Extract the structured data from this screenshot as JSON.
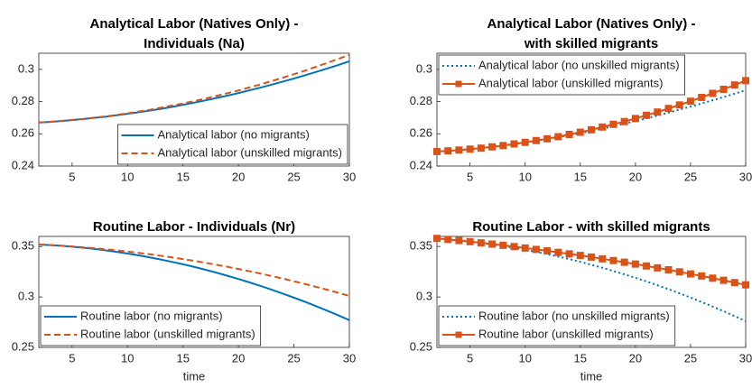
{
  "chart_data": [
    {
      "type": "line",
      "title": [
        "Analytical Labor (Natives Only) -",
        "Individuals (Na)"
      ],
      "x": [
        2,
        3,
        4,
        5,
        6,
        7,
        8,
        9,
        10,
        11,
        12,
        13,
        14,
        15,
        16,
        17,
        18,
        19,
        20,
        21,
        22,
        23,
        24,
        25,
        26,
        27,
        28,
        29,
        30
      ],
      "xlim": [
        2,
        30
      ],
      "xticks": [
        5,
        10,
        15,
        20,
        25,
        30
      ],
      "ylim": [
        0.24,
        0.31
      ],
      "yticks": [
        0.24,
        0.26,
        0.28,
        0.3
      ],
      "legend": "lower right",
      "series": [
        {
          "name": "Analytical labor (no migrants)",
          "color": "#0072BD",
          "style": "solid",
          "values": [
            0.267,
            0.2674,
            0.2679,
            0.2685,
            0.2692,
            0.2699,
            0.2706,
            0.2715,
            0.2724,
            0.2734,
            0.2744,
            0.2755,
            0.2767,
            0.278,
            0.2793,
            0.2807,
            0.2822,
            0.2837,
            0.2853,
            0.287,
            0.2887,
            0.2905,
            0.2924,
            0.2943,
            0.2963,
            0.2984,
            0.3005,
            0.3027,
            0.305
          ]
        },
        {
          "name": "Analytical labor (unskilled migrants)",
          "color": "#D95319",
          "style": "dashed",
          "values": [
            0.267,
            0.2674,
            0.268,
            0.2686,
            0.2692,
            0.27,
            0.2708,
            0.2717,
            0.2727,
            0.2738,
            0.2749,
            0.2762,
            0.2775,
            0.2788,
            0.2803,
            0.2819,
            0.2835,
            0.2852,
            0.2869,
            0.2888,
            0.2907,
            0.2927,
            0.2948,
            0.297,
            0.2992,
            0.3016,
            0.304,
            0.3065,
            0.309
          ]
        }
      ]
    },
    {
      "type": "line",
      "title": [
        "Analytical Labor (Natives Only) -",
        "with skilled migrants"
      ],
      "x": [
        2,
        3,
        4,
        5,
        6,
        7,
        8,
        9,
        10,
        11,
        12,
        13,
        14,
        15,
        16,
        17,
        18,
        19,
        20,
        21,
        22,
        23,
        24,
        25,
        26,
        27,
        28,
        29,
        30
      ],
      "xlim": [
        2,
        30
      ],
      "xticks": [
        5,
        10,
        15,
        20,
        25,
        30
      ],
      "ylim": [
        0.24,
        0.31
      ],
      "yticks": [
        0.24,
        0.26,
        0.28,
        0.3
      ],
      "legend": "upper left",
      "series": [
        {
          "name": "Analytical labor (no unskilled migrants)",
          "color": "#0072BD",
          "style": "dotted",
          "values": [
            0.249,
            0.2494,
            0.2499,
            0.2505,
            0.2511,
            0.2519,
            0.2527,
            0.2536,
            0.2545,
            0.2556,
            0.2567,
            0.2579,
            0.2591,
            0.2604,
            0.2618,
            0.2632,
            0.2647,
            0.2663,
            0.2679,
            0.2696,
            0.2713,
            0.2731,
            0.275,
            0.2769,
            0.2788,
            0.2808,
            0.2828,
            0.2849,
            0.287
          ]
        },
        {
          "name": "Analytical labor (unskilled migrants)",
          "color": "#D95319",
          "style": "solid",
          "marker": "square",
          "values": [
            0.249,
            0.2494,
            0.2499,
            0.2505,
            0.2511,
            0.2519,
            0.2527,
            0.2537,
            0.2547,
            0.2558,
            0.2569,
            0.2582,
            0.2596,
            0.261,
            0.2625,
            0.2642,
            0.2659,
            0.2676,
            0.2695,
            0.2715,
            0.2735,
            0.2757,
            0.2779,
            0.2802,
            0.2826,
            0.2851,
            0.2876,
            0.2903,
            0.293
          ]
        }
      ]
    },
    {
      "type": "line",
      "title": [
        "Routine Labor - Individuals (Nr)"
      ],
      "xlabel": "time",
      "x": [
        2,
        3,
        4,
        5,
        6,
        7,
        8,
        9,
        10,
        11,
        12,
        13,
        14,
        15,
        16,
        17,
        18,
        19,
        20,
        21,
        22,
        23,
        24,
        25,
        26,
        27,
        28,
        29,
        30
      ],
      "xlim": [
        2,
        30
      ],
      "xticks": [
        5,
        10,
        15,
        20,
        25,
        30
      ],
      "ylim": [
        0.25,
        0.36
      ],
      "yticks": [
        0.25,
        0.3,
        0.35
      ],
      "legend": "lower left",
      "series": [
        {
          "name": "Routine labor (no migrants)",
          "color": "#0072BD",
          "style": "solid",
          "values": [
            0.352,
            0.3514,
            0.3507,
            0.3498,
            0.3488,
            0.3476,
            0.3462,
            0.3447,
            0.343,
            0.3412,
            0.3392,
            0.3371,
            0.3348,
            0.3324,
            0.3298,
            0.327,
            0.3241,
            0.321,
            0.3178,
            0.3144,
            0.3109,
            0.3072,
            0.3033,
            0.2993,
            0.2952,
            0.2909,
            0.2864,
            0.2818,
            0.277
          ]
        },
        {
          "name": "Routine labor (unskilled migrants)",
          "color": "#D95319",
          "style": "dashed",
          "values": [
            0.352,
            0.3515,
            0.3508,
            0.3501,
            0.3492,
            0.3483,
            0.3473,
            0.3462,
            0.345,
            0.3437,
            0.3423,
            0.3408,
            0.3392,
            0.3375,
            0.3358,
            0.3339,
            0.3319,
            0.3299,
            0.3277,
            0.3255,
            0.3231,
            0.3207,
            0.3182,
            0.3155,
            0.3128,
            0.31,
            0.3071,
            0.3041,
            0.301
          ]
        }
      ]
    },
    {
      "type": "line",
      "title": [
        "Routine Labor - with skilled migrants"
      ],
      "xlabel": "time",
      "x": [
        2,
        3,
        4,
        5,
        6,
        7,
        8,
        9,
        10,
        11,
        12,
        13,
        14,
        15,
        16,
        17,
        18,
        19,
        20,
        21,
        22,
        23,
        24,
        25,
        26,
        27,
        28,
        29,
        30
      ],
      "xlim": [
        2,
        30
      ],
      "xticks": [
        5,
        10,
        15,
        20,
        25,
        30
      ],
      "ylim": [
        0.25,
        0.36
      ],
      "yticks": [
        0.25,
        0.3,
        0.35
      ],
      "legend": "lower left",
      "series": [
        {
          "name": "Routine labor (no unskilled migrants)",
          "color": "#0072BD",
          "style": "dotted",
          "values": [
            0.358,
            0.3571,
            0.3561,
            0.3549,
            0.3536,
            0.3521,
            0.3505,
            0.3487,
            0.3467,
            0.3446,
            0.3424,
            0.34,
            0.3375,
            0.3348,
            0.3319,
            0.3289,
            0.3257,
            0.3224,
            0.319,
            0.3154,
            0.3116,
            0.3077,
            0.3036,
            0.2994,
            0.295,
            0.2905,
            0.2858,
            0.281,
            0.276
          ]
        },
        {
          "name": "Routine labor (unskilled migrants)",
          "color": "#D95319",
          "style": "solid",
          "marker": "square",
          "values": [
            0.358,
            0.357,
            0.3559,
            0.3548,
            0.3536,
            0.3524,
            0.3512,
            0.3499,
            0.3485,
            0.3471,
            0.3457,
            0.3442,
            0.3427,
            0.3411,
            0.3395,
            0.3378,
            0.3361,
            0.3344,
            0.3326,
            0.3307,
            0.3288,
            0.3269,
            0.3249,
            0.3228,
            0.3208,
            0.3186,
            0.3165,
            0.3142,
            0.312
          ]
        }
      ]
    }
  ]
}
